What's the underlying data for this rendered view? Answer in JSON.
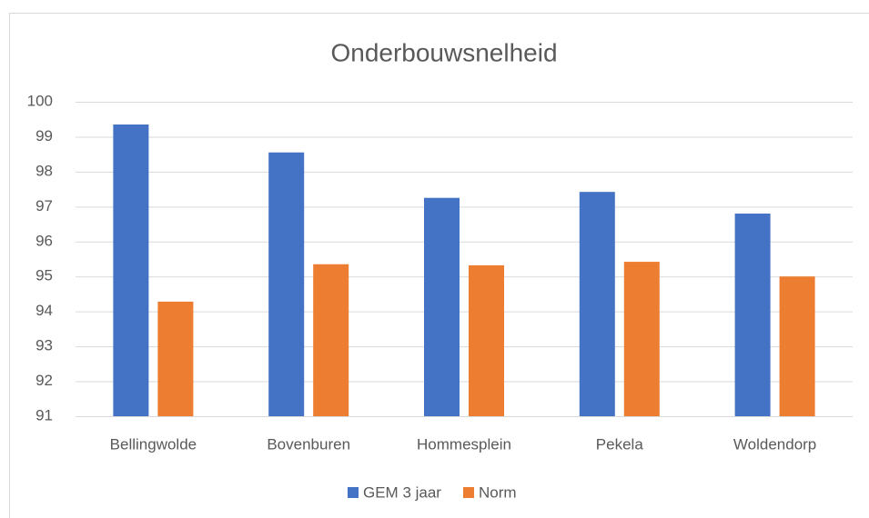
{
  "chart_data": {
    "type": "bar",
    "title": "Onderbouwsnelheid",
    "categories": [
      "Bellingwolde",
      "Bovenburen",
      "Hommesplein",
      "Pekela",
      "Woldendorp"
    ],
    "series": [
      {
        "name": "GEM 3 jaar",
        "color": "#4472c4",
        "values": [
          99.35,
          98.55,
          97.25,
          97.42,
          96.8
        ]
      },
      {
        "name": "Norm",
        "color": "#ed7d31",
        "values": [
          94.28,
          95.35,
          95.32,
          95.42,
          95.0
        ]
      }
    ],
    "ylim": [
      91,
      100
    ],
    "yticks": [
      91,
      92,
      93,
      94,
      95,
      96,
      97,
      98,
      99,
      100
    ],
    "grid": true,
    "legend": "bottom"
  }
}
